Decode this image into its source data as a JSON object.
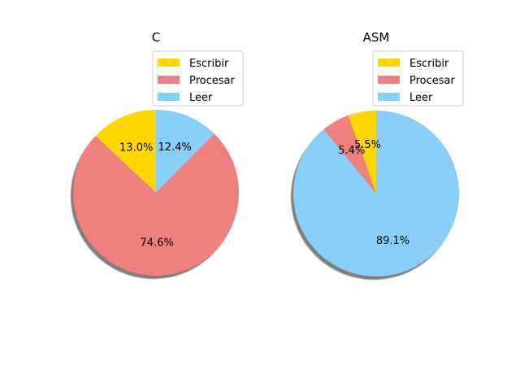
{
  "chart_data": [
    {
      "type": "pie",
      "title": "C",
      "labels": [
        "Escribir",
        "Procesar",
        "Leer"
      ],
      "values": [
        13.0,
        74.6,
        12.4
      ],
      "value_labels": [
        "13.0%",
        "74.6%",
        "12.4%"
      ],
      "colors": [
        "#ffd700",
        "#f08080",
        "#87cefa"
      ],
      "start_angle_deg": 90,
      "direction": "counterclockwise",
      "shadow": true,
      "legend": {
        "entries": [
          "Escribir",
          "Procesar",
          "Leer"
        ],
        "placement": "upper-right"
      }
    },
    {
      "type": "pie",
      "title": "ASM",
      "labels": [
        "Escribir",
        "Procesar",
        "Leer"
      ],
      "values": [
        5.5,
        5.4,
        89.1
      ],
      "value_labels": [
        "5.5%",
        "5.4%",
        "89.1%"
      ],
      "colors": [
        "#ffd700",
        "#f08080",
        "#87cefa"
      ],
      "start_angle_deg": 90,
      "direction": "counterclockwise",
      "shadow": true,
      "legend": {
        "entries": [
          "Escribir",
          "Procesar",
          "Leer"
        ],
        "placement": "upper-right"
      }
    }
  ]
}
